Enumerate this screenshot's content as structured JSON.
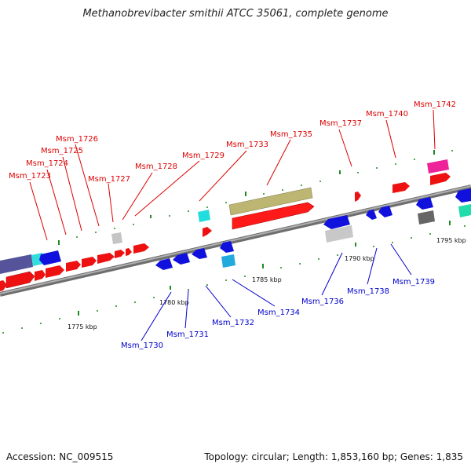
{
  "title": "Methanobrevibacter smithii ATCC 35061, complete genome",
  "accession": "Accession: NC_009515",
  "topology": "Topology: circular; Length: 1,853,160 bp; Genes: 1,835",
  "colors": {
    "forward_label": "#dd0000",
    "reverse_label": "#0000cc",
    "backbone": "#888888"
  },
  "scale_labels": [
    "1775 kbp",
    "1780 kbp",
    "1785 kbp",
    "1790 kbp",
    "1795 kbp"
  ],
  "gene_labels": {
    "forward": [
      "Msm_1723",
      "Msm_1724",
      "Msm_1725",
      "Msm_1726",
      "Msm_1727",
      "Msm_1728",
      "Msm_1729",
      "Msm_1733",
      "Msm_1735",
      "Msm_1737",
      "Msm_1740",
      "Msm_1742"
    ],
    "reverse": [
      "Msm_1730",
      "Msm_1731",
      "Msm_1732",
      "Msm_1734",
      "Msm_1736",
      "Msm_1738",
      "Msm_1739"
    ]
  }
}
